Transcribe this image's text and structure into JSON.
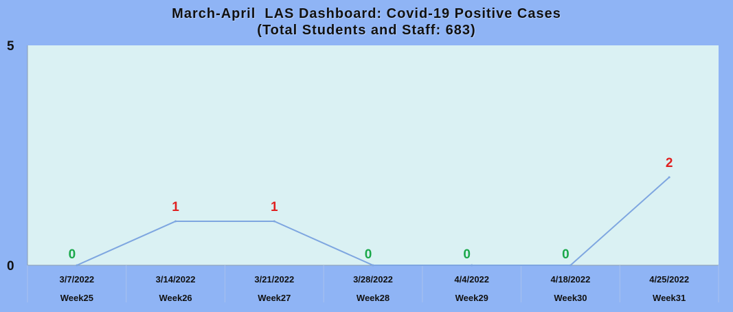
{
  "chart_data": {
    "type": "line",
    "title": "March-April  LAS Dashboard: Covid-19 Positive Cases",
    "subtitle": "(Total Students and Staff: 683)",
    "categories": [
      {
        "date": "3/7/2022",
        "week": "Week25"
      },
      {
        "date": "3/14/2022",
        "week": "Week26"
      },
      {
        "date": "3/21/2022",
        "week": "Week27"
      },
      {
        "date": "3/28/2022",
        "week": "Week28"
      },
      {
        "date": "4/4/2022",
        "week": "Week29"
      },
      {
        "date": "4/18/2022",
        "week": "Week30"
      },
      {
        "date": "4/25/2022",
        "week": "Week31"
      }
    ],
    "values": [
      0,
      1,
      1,
      0,
      0,
      0,
      2
    ],
    "ylim": [
      0,
      5
    ],
    "yticks": [
      0,
      5
    ],
    "grid": false,
    "colors": {
      "background": "#8fb4f5",
      "plot_area": "#daf1f3",
      "line": "#7ea6e0",
      "label_zero": "#1aa84a",
      "label_positive": "#e01f1f"
    }
  }
}
